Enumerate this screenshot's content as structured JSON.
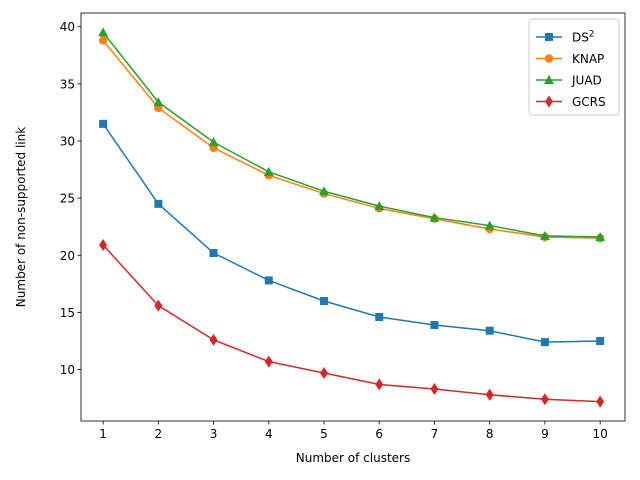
{
  "chart_data": {
    "type": "line",
    "title": "",
    "xlabel": "Number of clusters",
    "ylabel": "Number of non-supported link",
    "x": [
      1,
      2,
      3,
      4,
      5,
      6,
      7,
      8,
      9,
      10
    ],
    "xlim": [
      0.6,
      10.45
    ],
    "ylim": [
      5.5,
      41.2
    ],
    "yticks": [
      10,
      15,
      20,
      25,
      30,
      35,
      40
    ],
    "grid": false,
    "legend_position": "top-right",
    "series": [
      {
        "name": "DS",
        "name_sup": "2",
        "color": "#1f77b4",
        "marker": "square",
        "values": [
          31.5,
          24.5,
          20.2,
          17.8,
          16.0,
          14.6,
          13.9,
          13.4,
          12.4,
          12.5
        ]
      },
      {
        "name": "KNAP",
        "color": "#ff7f0e",
        "marker": "circle",
        "values": [
          38.8,
          32.9,
          29.4,
          27.0,
          25.4,
          24.1,
          23.2,
          22.3,
          21.6,
          21.5
        ]
      },
      {
        "name": "JUAD",
        "color": "#2ca02c",
        "marker": "triangle",
        "values": [
          39.5,
          33.4,
          29.9,
          27.3,
          25.6,
          24.3,
          23.3,
          22.6,
          21.7,
          21.6
        ]
      },
      {
        "name": "GCRS",
        "color": "#d62728",
        "marker": "diamond",
        "values": [
          20.9,
          15.6,
          12.6,
          10.7,
          9.7,
          8.7,
          8.3,
          7.8,
          7.4,
          7.2
        ]
      }
    ]
  }
}
